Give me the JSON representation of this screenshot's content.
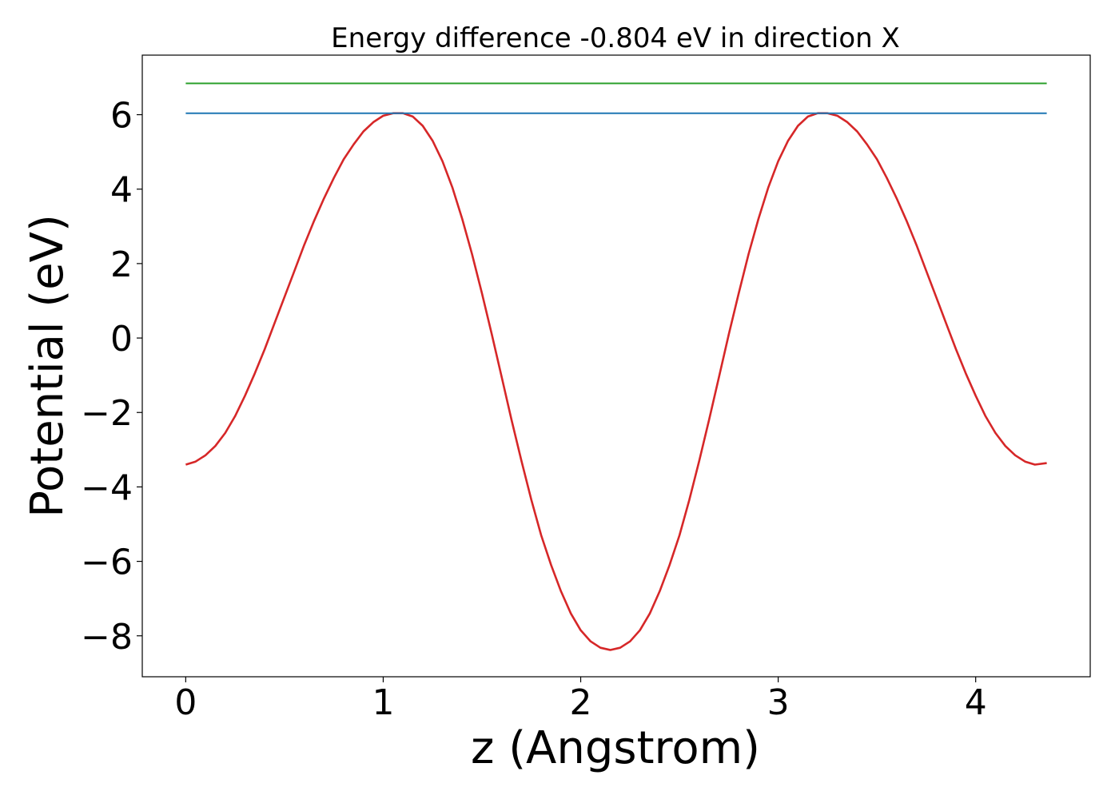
{
  "chart_data": {
    "type": "line",
    "title": "Energy difference -0.804 eV in direction X",
    "xlabel": "z (Angstrom)",
    "ylabel": "Potential (eV)",
    "xlim": [
      -0.22,
      4.58
    ],
    "ylim": [
      -9.1,
      7.6
    ],
    "xticks": [
      0,
      1,
      2,
      3,
      4
    ],
    "yticks": [
      -8,
      -6,
      -4,
      -2,
      0,
      2,
      4,
      6
    ],
    "xtick_labels": [
      "0",
      "1",
      "2",
      "3",
      "4"
    ],
    "ytick_labels": [
      "−8",
      "−6",
      "−4",
      "−2",
      "0",
      "2",
      "4",
      "6"
    ],
    "grid": false,
    "legend": "none",
    "series": [
      {
        "color": "#d62728",
        "x": [
          0.0,
          0.05,
          0.1,
          0.15,
          0.2,
          0.25,
          0.3,
          0.35,
          0.4,
          0.45,
          0.5,
          0.55,
          0.6,
          0.65,
          0.7,
          0.75,
          0.8,
          0.85,
          0.9,
          0.95,
          1.0,
          1.05,
          1.1,
          1.15,
          1.2,
          1.25,
          1.3,
          1.35,
          1.4,
          1.45,
          1.5,
          1.55,
          1.6,
          1.65,
          1.7,
          1.75,
          1.8,
          1.85,
          1.9,
          1.95,
          2.0,
          2.05,
          2.1,
          2.15,
          2.2,
          2.25,
          2.3,
          2.35,
          2.4,
          2.45,
          2.5,
          2.55,
          2.6,
          2.65,
          2.7,
          2.75,
          2.8,
          2.85,
          2.9,
          2.95,
          3.0,
          3.05,
          3.1,
          3.15,
          3.2,
          3.25,
          3.3,
          3.35,
          3.4,
          3.45,
          3.5,
          3.55,
          3.6,
          3.65,
          3.7,
          3.75,
          3.8,
          3.85,
          3.9,
          3.95,
          4.0,
          4.05,
          4.1,
          4.15,
          4.2,
          4.25,
          4.3,
          4.36
        ],
        "y": [
          -3.4,
          -3.32,
          -3.15,
          -2.9,
          -2.55,
          -2.1,
          -1.55,
          -0.95,
          -0.3,
          0.4,
          1.1,
          1.8,
          2.5,
          3.15,
          3.75,
          4.3,
          4.8,
          5.2,
          5.55,
          5.8,
          5.97,
          6.04,
          6.04,
          5.95,
          5.7,
          5.3,
          4.75,
          4.05,
          3.2,
          2.25,
          1.2,
          0.1,
          -1.05,
          -2.2,
          -3.3,
          -4.35,
          -5.3,
          -6.1,
          -6.8,
          -7.4,
          -7.85,
          -8.15,
          -8.32,
          -8.38,
          -8.32,
          -8.15,
          -7.85,
          -7.4,
          -6.8,
          -6.1,
          -5.3,
          -4.35,
          -3.3,
          -2.2,
          -1.05,
          0.1,
          1.2,
          2.25,
          3.2,
          4.05,
          4.75,
          5.3,
          5.7,
          5.95,
          6.04,
          6.04,
          5.97,
          5.8,
          5.55,
          5.2,
          4.8,
          4.3,
          3.75,
          3.15,
          2.5,
          1.8,
          1.1,
          0.4,
          -0.3,
          -0.95,
          -1.55,
          -2.1,
          -2.55,
          -2.9,
          -3.15,
          -3.32,
          -3.4,
          -3.36
        ]
      },
      {
        "color": "#1f77b4",
        "x": [
          0.0,
          4.36
        ],
        "y": [
          6.04,
          6.04
        ]
      },
      {
        "color": "#2ca02c",
        "x": [
          0.0,
          4.36
        ],
        "y": [
          6.84,
          6.84
        ]
      }
    ]
  }
}
